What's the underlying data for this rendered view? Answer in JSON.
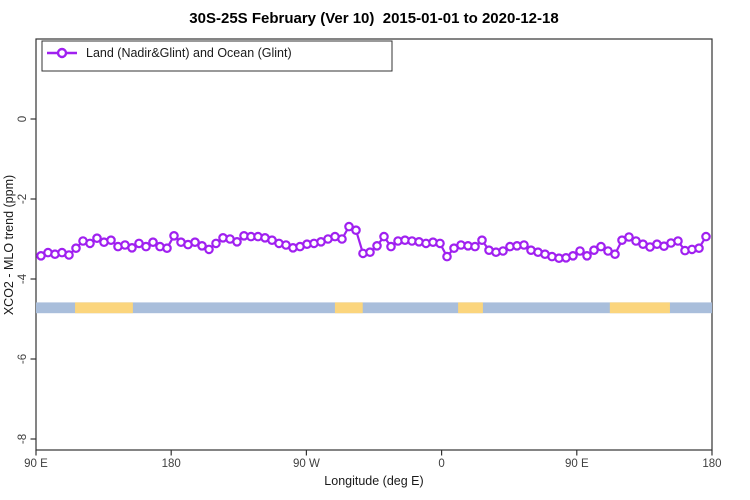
{
  "title": "30S-25S February (Ver 10)  2015-01-01 to 2020-12-18",
  "legend": {
    "items": [
      {
        "label": "Land (Nadir&Glint) and Ocean (Glint)",
        "color": "#A020F0",
        "marker": "open-circle-on-line"
      }
    ]
  },
  "axes": {
    "x": {
      "label": "Longitude (deg E)",
      "range_deg": [
        90,
        540
      ],
      "ticks": [
        {
          "lon": 90,
          "label": "90 E"
        },
        {
          "lon": 180,
          "label": "180"
        },
        {
          "lon": 270,
          "label": "90 W"
        },
        {
          "lon": 360,
          "label": "0"
        },
        {
          "lon": 450,
          "label": "90 E"
        },
        {
          "lon": 540,
          "label": "180"
        }
      ]
    },
    "y": {
      "label": "XCO2 - MLO trend (ppm)",
      "range_ppm": [
        2.0,
        -8.3
      ],
      "ticks": [
        {
          "value": 0,
          "label": "0"
        },
        {
          "value": -2,
          "label": "-2"
        },
        {
          "value": -4,
          "label": "-4"
        },
        {
          "value": -6,
          "label": "-6"
        },
        {
          "value": -8,
          "label": "-8"
        }
      ]
    }
  },
  "chart_data": {
    "type": "line",
    "title": "30S-25S February (Ver 10)  2015-01-01 to 2020-12-18",
    "xlabel": "Longitude (deg E)",
    "ylabel": "XCO2 - MLO trend (ppm)",
    "xlim_deg": [
      90,
      540
    ],
    "ylim_ppm": [
      2.0,
      -8.3
    ],
    "grid": false,
    "legend_position": "top-left",
    "series": [
      {
        "name": "Land (Nadir&Glint) and Ocean (Glint)",
        "color": "#A020F0",
        "marker": "open-circle",
        "lon_start_deg": 93.3,
        "lon_step_deg": 4.66,
        "values": [
          -3.42,
          -3.34,
          -3.38,
          -3.34,
          -3.4,
          -3.23,
          -3.05,
          -3.11,
          -2.98,
          -3.08,
          -3.03,
          -3.19,
          -3.15,
          -3.22,
          -3.11,
          -3.19,
          -3.08,
          -3.19,
          -3.23,
          -2.92,
          -3.08,
          -3.14,
          -3.08,
          -3.17,
          -3.26,
          -3.11,
          -2.97,
          -3.0,
          -3.07,
          -2.92,
          -2.94,
          -2.94,
          -2.97,
          -3.03,
          -3.11,
          -3.15,
          -3.22,
          -3.19,
          -3.13,
          -3.11,
          -3.07,
          -3.0,
          -2.94,
          -3.0,
          -2.69,
          -2.78,
          -3.36,
          -3.33,
          -3.17,
          -2.94,
          -3.19,
          -3.05,
          -3.03,
          -3.05,
          -3.07,
          -3.11,
          -3.08,
          -3.11,
          -3.44,
          -3.23,
          -3.15,
          -3.17,
          -3.19,
          -3.03,
          -3.28,
          -3.33,
          -3.3,
          -3.19,
          -3.17,
          -3.15,
          -3.28,
          -3.33,
          -3.38,
          -3.44,
          -3.48,
          -3.47,
          -3.42,
          -3.3,
          -3.42,
          -3.28,
          -3.19,
          -3.3,
          -3.38,
          -3.03,
          -2.95,
          -3.05,
          -3.13,
          -3.2,
          -3.13,
          -3.18,
          -3.1,
          -3.05,
          -3.29,
          -3.26,
          -3.23,
          -2.94
        ]
      }
    ],
    "land_ocean_band": {
      "y_center_ppm": -4.72,
      "height_ppm": 0.27,
      "ocean_color": "#A9BEDB",
      "land_color": "#FBD57D",
      "ocean_range_deg": [
        90,
        540
      ],
      "land_segments_deg": [
        [
          116,
          154.5
        ],
        [
          289,
          307.5
        ],
        [
          371,
          387.5
        ],
        [
          472,
          512
        ]
      ]
    }
  }
}
